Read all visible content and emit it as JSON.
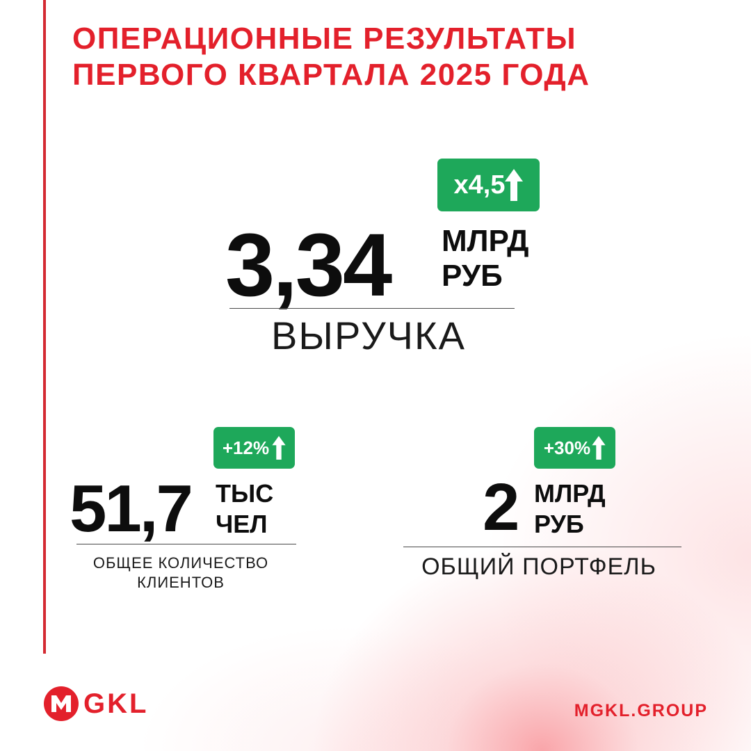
{
  "title": {
    "line1": "ОПЕРАЦИОННЫЕ РЕЗУЛЬТАТЫ",
    "line2": "ПЕРВОГО КВАРТАЛА 2025 ГОДА"
  },
  "metrics": {
    "revenue": {
      "badge": "x4,5",
      "value": "3,34",
      "unit_line1": "МЛРД",
      "unit_line2": "РУБ",
      "label": "ВЫРУЧКА"
    },
    "clients": {
      "badge": "+12%",
      "value": "51,7",
      "unit_line1": "ТЫС",
      "unit_line2": "ЧЕЛ",
      "label_line1": "ОБЩЕЕ КОЛИЧЕСТВО",
      "label_line2": "КЛИЕНТОВ"
    },
    "portfolio": {
      "badge": "+30%",
      "value": "2",
      "unit_line1": "МЛРД",
      "unit_line2": "РУБ",
      "label": "ОБЩИЙ ПОРТФЕЛЬ"
    }
  },
  "footer": {
    "logo_mark": "M",
    "logo_text": "GKL",
    "website": "MGKL.GROUP"
  },
  "icons": {
    "trend": "arrow-up-icon",
    "logo": "mgkl-logo-icon"
  },
  "colors": {
    "brand_red": "#e3202b",
    "accent_line": "#d42a32",
    "growth_green": "#1ea85a",
    "text_dark": "#0d0d0d"
  }
}
